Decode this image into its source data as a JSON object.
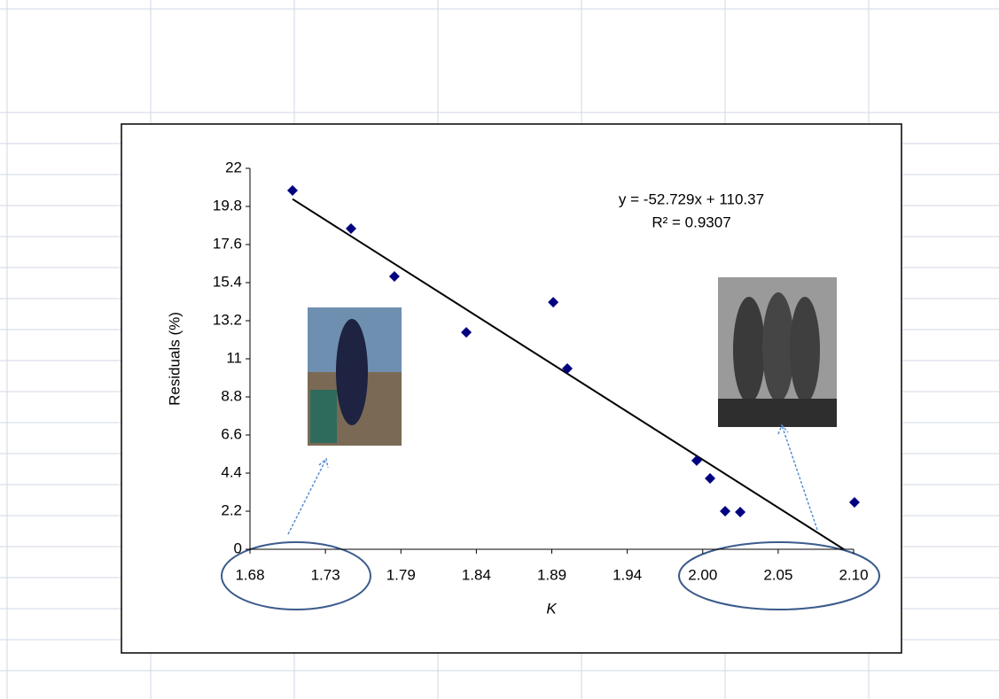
{
  "chart_data": {
    "type": "scatter",
    "x_label": "K",
    "y_label": "Residuals (%)",
    "equation": "y = -52.729x + 110.37",
    "r_squared": "R² = 0.9307",
    "trendline": {
      "slope": -52.729,
      "intercept": 110.37,
      "color": "#000000"
    },
    "series": [
      {
        "color": "#000080",
        "x": [
          1.7096,
          1.7503,
          1.7805,
          1.8305,
          1.891,
          1.9008,
          1.9908,
          2.0001,
          2.0106,
          2.0211,
          2.1006
        ],
        "values": [
          20.72,
          18.52,
          15.76,
          12.53,
          14.27,
          10.44,
          5.12,
          4.09,
          2.2,
          2.15,
          2.71
        ]
      }
    ],
    "xlim": [
      1.68,
      2.1
    ],
    "xticks": [
      {
        "value": 1.68,
        "label": "1.68"
      },
      {
        "value": 1.7325,
        "label": "1.73"
      },
      {
        "value": 1.785,
        "label": "1.79"
      },
      {
        "value": 1.8375,
        "label": "1.84"
      },
      {
        "value": 1.89,
        "label": "1.89"
      },
      {
        "value": 1.9425,
        "label": "1.94"
      },
      {
        "value": 1.995,
        "label": "2.00"
      },
      {
        "value": 2.0475,
        "label": "2.05"
      },
      {
        "value": 2.1,
        "label": "2.10"
      }
    ],
    "ylim": [
      0,
      22
    ],
    "yticks": [
      0,
      2.2,
      4.4,
      6.6,
      8.8,
      11,
      13.2,
      15.4,
      17.6,
      19.8,
      22
    ]
  }
}
